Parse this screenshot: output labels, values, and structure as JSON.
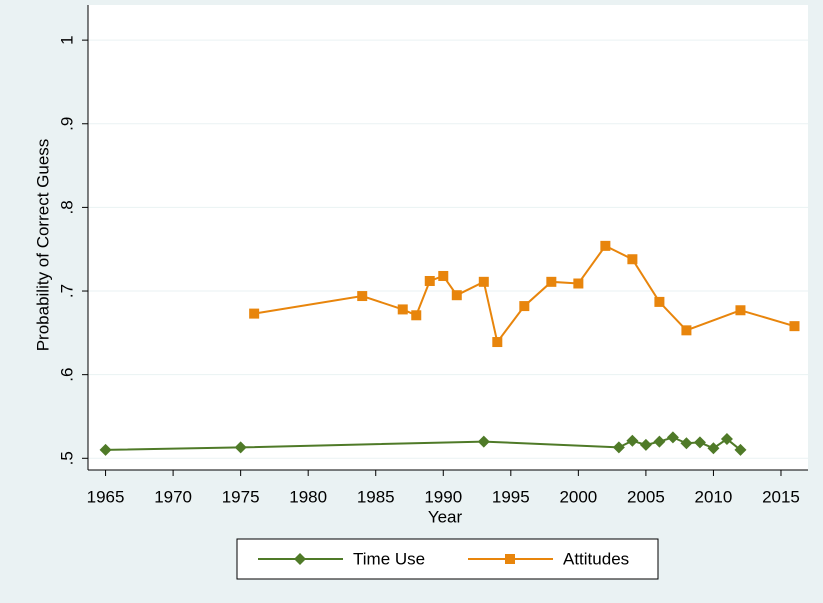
{
  "chart_data": {
    "type": "line",
    "x_label": "Year",
    "y_label": "Probability of Correct Guess",
    "xlim": [
      1963.7,
      2017
    ],
    "ylim": [
      0.486,
      1.042
    ],
    "xticks": [
      1965,
      1970,
      1975,
      1980,
      1985,
      1990,
      1995,
      2000,
      2005,
      2010,
      2015
    ],
    "yticks": [
      {
        "value": 0.5,
        "label": ".5"
      },
      {
        "value": 0.6,
        "label": ".6"
      },
      {
        "value": 0.7,
        "label": ".7"
      },
      {
        "value": 0.8,
        "label": ".8"
      },
      {
        "value": 0.9,
        "label": ".9"
      },
      1
    ],
    "grid": true,
    "legend": "bottom",
    "series": [
      {
        "name": "Time Use",
        "color": "#4f7a28",
        "marker": "diamond",
        "x": [
          1965,
          1975,
          1993,
          2003,
          2004,
          2005,
          2006,
          2007,
          2008,
          2009,
          2010,
          2011,
          2012
        ],
        "values": [
          0.51,
          0.513,
          0.52,
          0.513,
          0.521,
          0.516,
          0.52,
          0.525,
          0.518,
          0.519,
          0.512,
          0.523,
          0.51
        ]
      },
      {
        "name": "Attitudes",
        "color": "#e8850c",
        "marker": "square",
        "x": [
          1976,
          1984,
          1987,
          1988,
          1989,
          1990,
          1991,
          1993,
          1994,
          1996,
          1998,
          2000,
          2002,
          2004,
          2006,
          2008,
          2012,
          2016
        ],
        "values": [
          0.673,
          0.694,
          0.678,
          0.671,
          0.712,
          0.718,
          0.695,
          0.711,
          0.639,
          0.682,
          0.711,
          0.709,
          0.754,
          0.738,
          0.687,
          0.653,
          0.677,
          0.658
        ]
      }
    ]
  }
}
